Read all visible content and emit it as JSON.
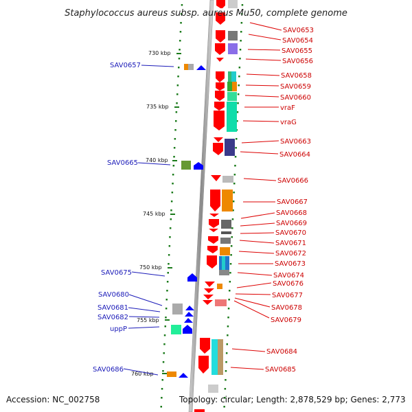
{
  "header": {
    "title": "Staphylococcus aureus subsp. aureus Mu50, complete genome"
  },
  "footer": {
    "accession": "Accession: NC_002758",
    "topology": "Topology: circular; Length: 2,878,529 bp; Genes: 2,773"
  },
  "ticks": [
    "730 kbp",
    "735 kbp",
    "740 kbp",
    "745 kbp",
    "750 kbp",
    "755 kbp",
    "760 kbp"
  ],
  "left_genes": [
    "SAV0657",
    "SAV0665",
    "SAV0675",
    "SAV0680",
    "SAV0681",
    "SAV0682",
    "uppP",
    "SAV0686"
  ],
  "right_genes": [
    "SAV0653",
    "SAV0654",
    "SAV0655",
    "SAV0656",
    "SAV0658",
    "SAV0659",
    "SAV0660",
    "vraF",
    "vraG",
    "SAV0663",
    "SAV0664",
    "SAV0666",
    "SAV0667",
    "SAV0668",
    "SAV0669",
    "SAV0670",
    "SAV0671",
    "SAV0672",
    "SAV0673",
    "SAV0674",
    "SAV0676",
    "SAV0677",
    "SAV0678",
    "SAV0679",
    "SAV0684",
    "SAV0685"
  ],
  "colors": {
    "forward_strand": "#0000ff",
    "reverse_strand": "#ff0000",
    "left_label": "#1a1ab8",
    "right_label": "#cc0000",
    "axis_dots": "#1a7a1a"
  }
}
